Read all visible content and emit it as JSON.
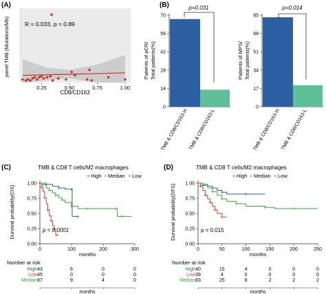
{
  "panels": {
    "A": {
      "letter": "(A)",
      "stat": "R = 0.033, p = 0.89",
      "xlabel": "CD8/CD163",
      "ylabel": "panel TMB (Mutations/Mb)",
      "xticks": [
        "0.25",
        "0.50",
        "0.75",
        "1.00"
      ]
    },
    "B": {
      "letter": "(B)",
      "left": {
        "p": "p=0.031",
        "ylabel1": "Patients of pCR/",
        "ylabel2": "Total patients(%)",
        "yticks": [
          "0",
          "14",
          "28",
          "42",
          "56",
          "70"
        ],
        "cats": [
          "TMB & CD8/CD163-H",
          "TMB & CD8/CD163-L"
        ]
      },
      "right": {
        "p": "p=0.014",
        "ylabel1": "Patients of MPS/",
        "ylabel2": "Total patients(%)",
        "yticks": [
          "0",
          "17",
          "34",
          "51",
          "68",
          "85"
        ],
        "cats": [
          "TMB & CD8/CD163-H",
          "TMB & CD8/CD163-L"
        ]
      }
    },
    "C": {
      "letter": "(C)",
      "title": "TMB & CD8 T cells/M2 macrophages",
      "legend": [
        "High",
        "Median",
        "Low"
      ],
      "ylabel": "Durvival probability(OS)",
      "xlabel": "months",
      "pvalue": "p < 0.0001",
      "yticks": [
        "0.00",
        "0.25",
        "0.50",
        "0.75",
        "1.00"
      ],
      "xticks": [
        "0",
        "100",
        "200",
        "300"
      ],
      "risk_title": "Number at risk",
      "risk_rows": [
        {
          "label": "High",
          "values": [
            "43",
            "6",
            "0",
            "0"
          ]
        },
        {
          "label": "Low",
          "values": [
            "45",
            "0",
            "0",
            "0"
          ]
        },
        {
          "label": "Median",
          "values": [
            "87",
            "9",
            "4",
            "0"
          ]
        }
      ],
      "risk_xlabel": "months"
    },
    "D": {
      "letter": "(D)",
      "title": "TMB & CD8 T cells/M2 macrophages",
      "legend": [
        "High",
        "Median",
        "Low"
      ],
      "ylabel": "Durvival probability(DFS)",
      "xlabel": "months",
      "pvalue": "p = 0.015",
      "yticks": [
        "0.00",
        "0.25",
        "0.50",
        "0.75",
        "1.00"
      ],
      "xticks": [
        "0",
        "50",
        "100",
        "150",
        "200",
        "250"
      ],
      "risk_title": "Number at risk",
      "risk_rows": [
        {
          "label": "High",
          "values": [
            "40",
            "15",
            "4",
            "0",
            "0",
            "0"
          ]
        },
        {
          "label": "Low",
          "values": [
            "39",
            "4",
            "0",
            "0",
            "0",
            "0"
          ]
        },
        {
          "label": "Median",
          "values": [
            "83",
            "25",
            "8",
            "2",
            "2",
            "2"
          ]
        }
      ],
      "risk_xlabel": "months"
    }
  },
  "colors": {
    "high": "#2b5ca8",
    "median": "#3aa63a",
    "low": "#d93a2a",
    "bar_h": "#2d5fa3",
    "bar_l": "#5fbf99",
    "scatter": "#c0392b",
    "band": "#cfcfcf"
  },
  "chart_data": [
    {
      "type": "scatter",
      "panel": "A",
      "xlabel": "CD8/CD163",
      "ylabel": "panel TMB (Mutations/Mb)",
      "xlim": [
        0.05,
        1.05
      ],
      "ylim": [
        0,
        70
      ],
      "points": [
        [
          0.08,
          3
        ],
        [
          0.11,
          2
        ],
        [
          0.13,
          3
        ],
        [
          0.15,
          2
        ],
        [
          0.17,
          4
        ],
        [
          0.19,
          5
        ],
        [
          0.21,
          3
        ],
        [
          0.23,
          5
        ],
        [
          0.25,
          6
        ],
        [
          0.27,
          4
        ],
        [
          0.3,
          5
        ],
        [
          0.33,
          6
        ],
        [
          0.35,
          2
        ],
        [
          0.34,
          64
        ],
        [
          0.4,
          4
        ],
        [
          0.47,
          3
        ],
        [
          0.52,
          10
        ],
        [
          0.55,
          7
        ],
        [
          0.66,
          3
        ],
        [
          0.68,
          12
        ],
        [
          0.7,
          2
        ],
        [
          0.85,
          5
        ],
        [
          1.0,
          3
        ]
      ],
      "fit": {
        "x": [
          0.08,
          1.0
        ],
        "y": [
          6.8,
          9.2
        ]
      },
      "band": {
        "x": [
          0.08,
          0.3,
          0.5,
          0.75,
          1.0
        ],
        "lower": [
          -8,
          2,
          4,
          0,
          -6
        ],
        "upper": [
          22,
          14,
          12,
          17,
          26
        ]
      }
    },
    {
      "type": "bar",
      "panel": "B-left",
      "categories": [
        "TMB & CD8/CD163-H",
        "TMB & CD8/CD163-L"
      ],
      "values": [
        67,
        13
      ],
      "ylim": [
        0,
        70
      ]
    },
    {
      "type": "bar",
      "panel": "B-right",
      "categories": [
        "TMB & CD8/CD163-H",
        "TMB & CD8/CD163-L"
      ],
      "values": [
        83,
        20
      ],
      "ylim": [
        0,
        85
      ]
    },
    {
      "type": "line",
      "panel": "C",
      "xlim": [
        0,
        300
      ],
      "ylim": [
        0,
        1
      ],
      "series": [
        {
          "name": "High",
          "x": [
            0,
            20,
            40,
            60,
            80,
            100,
            102,
            120
          ],
          "y": [
            1,
            0.98,
            0.95,
            0.92,
            0.9,
            0.9,
            0.45,
            0.45
          ]
        },
        {
          "name": "Median",
          "x": [
            0,
            10,
            20,
            30,
            40,
            50,
            60,
            70,
            80,
            100,
            120,
            150,
            200,
            240,
            245,
            260,
            290
          ],
          "y": [
            1,
            0.97,
            0.92,
            0.88,
            0.84,
            0.8,
            0.76,
            0.72,
            0.68,
            0.62,
            0.58,
            0.58,
            0.58,
            0.58,
            0.45,
            0.45,
            0.45
          ]
        },
        {
          "name": "Low",
          "x": [
            0,
            5,
            10,
            15,
            20,
            25,
            30,
            35,
            40,
            45,
            50,
            55
          ],
          "y": [
            1,
            0.93,
            0.86,
            0.76,
            0.66,
            0.56,
            0.46,
            0.38,
            0.3,
            0.24,
            0.14,
            0.14
          ]
        }
      ]
    },
    {
      "type": "line",
      "panel": "D",
      "xlim": [
        0,
        250
      ],
      "ylim": [
        0,
        1
      ],
      "series": [
        {
          "name": "High",
          "x": [
            0,
            10,
            20,
            30,
            40,
            50,
            60,
            100,
            140
          ],
          "y": [
            1,
            0.98,
            0.95,
            0.92,
            0.88,
            0.85,
            0.82,
            0.82,
            0.82
          ]
        },
        {
          "name": "Median",
          "x": [
            0,
            10,
            20,
            30,
            40,
            50,
            60,
            80,
            100,
            140,
            160,
            200,
            250
          ],
          "y": [
            1,
            0.96,
            0.92,
            0.86,
            0.8,
            0.74,
            0.7,
            0.66,
            0.62,
            0.6,
            0.58,
            0.58,
            0.58
          ]
        },
        {
          "name": "Low",
          "x": [
            0,
            5,
            10,
            15,
            20,
            25,
            30,
            35,
            40,
            50,
            60
          ],
          "y": [
            1,
            0.95,
            0.88,
            0.8,
            0.74,
            0.68,
            0.62,
            0.56,
            0.5,
            0.44,
            0.44
          ]
        }
      ]
    }
  ]
}
